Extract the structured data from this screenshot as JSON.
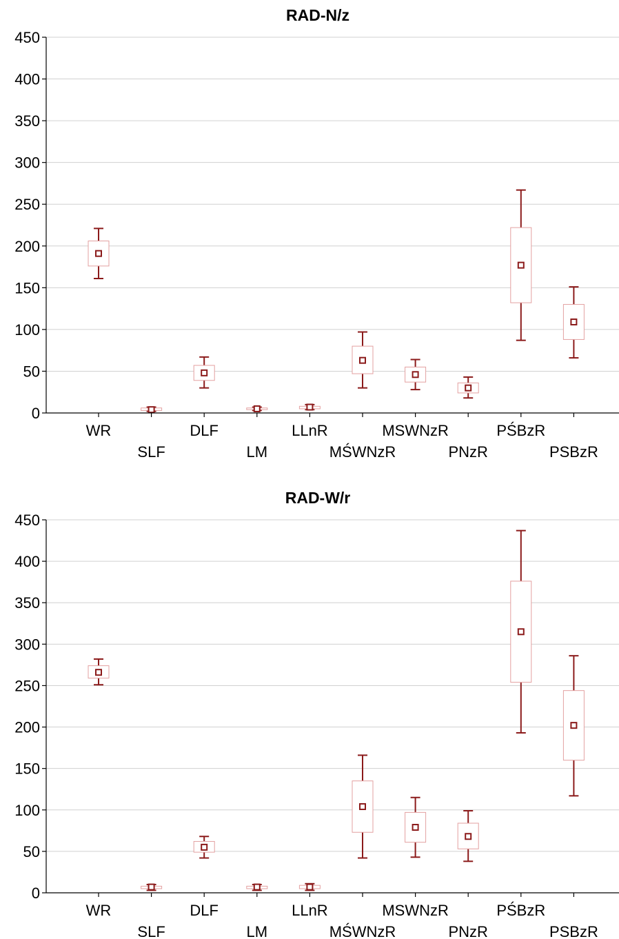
{
  "chart_data": [
    {
      "type": "box",
      "title": "RAD-N/z",
      "xlabel": "",
      "ylabel": "",
      "ylim": [
        0,
        450
      ],
      "yticks": [
        0,
        50,
        100,
        150,
        200,
        250,
        300,
        350,
        400,
        450
      ],
      "grid": true,
      "categories": [
        "WR",
        "SLF",
        "DLF",
        "LM",
        "LLnR",
        "MŚWNzR",
        "MSWNzR",
        "PNzR",
        "PŚBzR",
        "PSBzR"
      ],
      "boxes": [
        {
          "mean": 191,
          "q1": 176,
          "q3": 206,
          "min": 161,
          "max": 221
        },
        {
          "mean": 4,
          "q1": 3,
          "q3": 6,
          "min": 2,
          "max": 7
        },
        {
          "mean": 48,
          "q1": 39,
          "q3": 57,
          "min": 30,
          "max": 67
        },
        {
          "mean": 5,
          "q1": 4,
          "q3": 6,
          "min": 3,
          "max": 7
        },
        {
          "mean": 7,
          "q1": 5,
          "q3": 8,
          "min": 4,
          "max": 10
        },
        {
          "mean": 63,
          "q1": 47,
          "q3": 80,
          "min": 30,
          "max": 97
        },
        {
          "mean": 46,
          "q1": 37,
          "q3": 55,
          "min": 28,
          "max": 64
        },
        {
          "mean": 30,
          "q1": 24,
          "q3": 36,
          "min": 18,
          "max": 43
        },
        {
          "mean": 177,
          "q1": 132,
          "q3": 222,
          "min": 87,
          "max": 267
        },
        {
          "mean": 109,
          "q1": 88,
          "q3": 130,
          "min": 66,
          "max": 151
        }
      ]
    },
    {
      "type": "box",
      "title": "RAD-W/r",
      "xlabel": "",
      "ylabel": "",
      "ylim": [
        0,
        450
      ],
      "yticks": [
        0,
        50,
        100,
        150,
        200,
        250,
        300,
        350,
        400,
        450
      ],
      "grid": true,
      "categories": [
        "WR",
        "SLF",
        "DLF",
        "LM",
        "LLnR",
        "MŚWNzR",
        "MSWNzR",
        "PNzR",
        "PŚBzR",
        "PSBzR"
      ],
      "boxes": [
        {
          "mean": 266,
          "q1": 259,
          "q3": 274,
          "min": 251,
          "max": 282
        },
        {
          "mean": 7,
          "q1": 5,
          "q3": 8,
          "min": 3,
          "max": 10
        },
        {
          "mean": 55,
          "q1": 49,
          "q3": 62,
          "min": 42,
          "max": 68
        },
        {
          "mean": 7,
          "q1": 5,
          "q3": 8,
          "min": 3,
          "max": 10
        },
        {
          "mean": 7,
          "q1": 5,
          "q3": 9,
          "min": 3,
          "max": 11
        },
        {
          "mean": 104,
          "q1": 73,
          "q3": 135,
          "min": 42,
          "max": 166
        },
        {
          "mean": 79,
          "q1": 61,
          "q3": 97,
          "min": 43,
          "max": 115
        },
        {
          "mean": 68,
          "q1": 53,
          "q3": 84,
          "min": 38,
          "max": 99
        },
        {
          "mean": 315,
          "q1": 254,
          "q3": 376,
          "min": 193,
          "max": 437
        },
        {
          "mean": 202,
          "q1": 160,
          "q3": 244,
          "min": 117,
          "max": 286
        }
      ]
    }
  ]
}
